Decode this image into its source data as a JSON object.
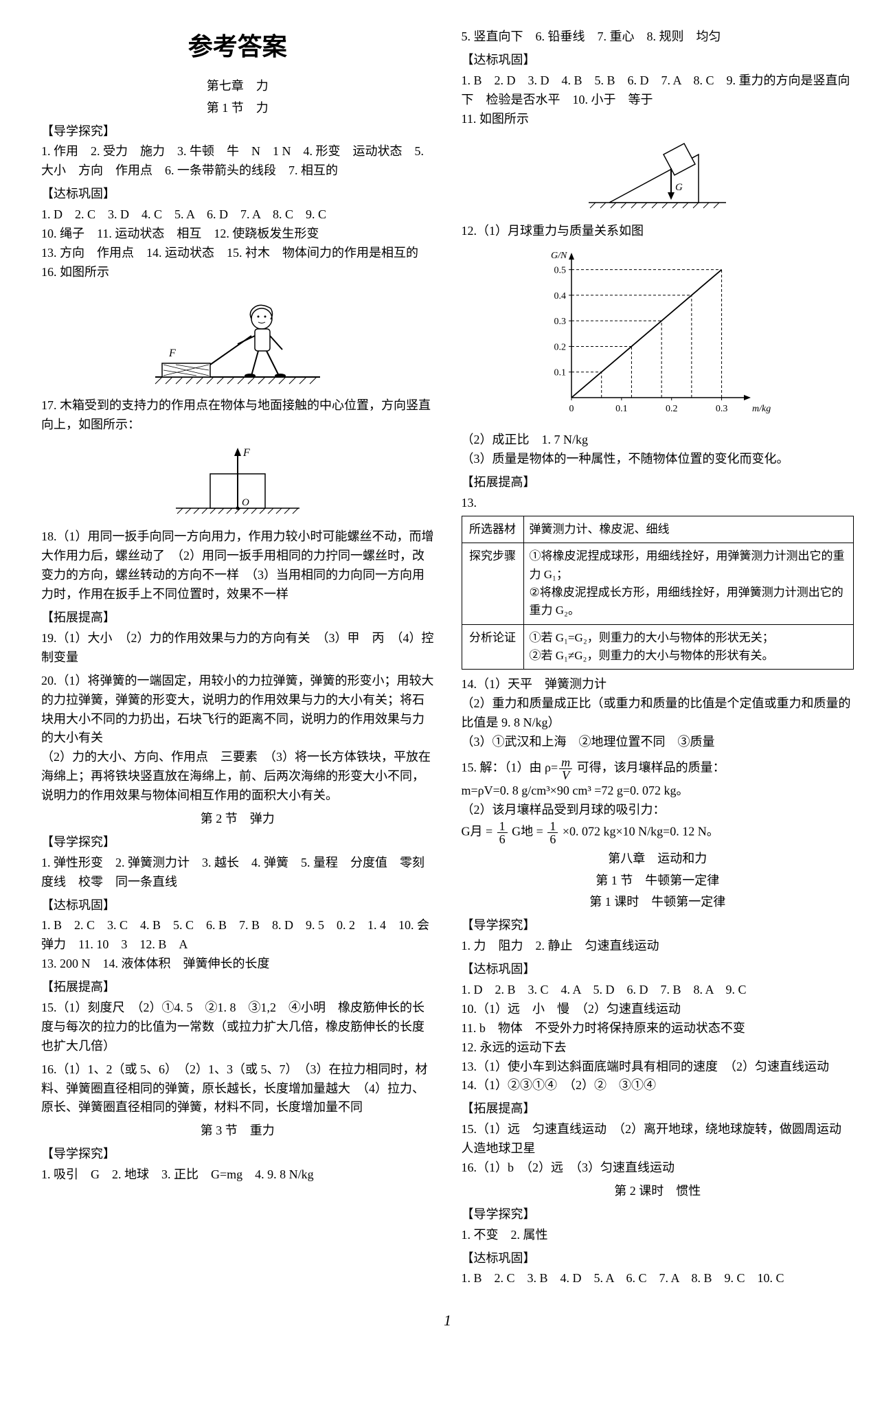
{
  "title": "参考答案",
  "left": {
    "chapter": "第七章　力",
    "s1": {
      "title": "第 1 节　力",
      "dxtq_h": "【导学探究】",
      "dxtq": "1. 作用　2. 受力　施力　3. 牛顿　牛　N　1 N　4. 形变　运动状态　5. 大小　方向　作用点　6. 一条带箭头的线段　7. 相互的",
      "dbgg_h": "【达标巩固】",
      "dbgg_a": "1. D　2. C　3. D　4. C　5. A　6. D　7. A　8. C　9. C",
      "dbgg_b": "10. 绳子　11. 运动状态　相互　12. 使跷板发生形变",
      "dbgg_c": "13. 方向　作用点　14. 运动状态　15. 衬木　物体间力的作用是相互的",
      "dbgg_d": "16. 如图所示",
      "q17": "17. 木箱受到的支持力的作用点在物体与地面接触的中心位置，方向竖直向上，如图所示：",
      "q18": "18.（1）用同一扳手向同一方向用力，作用力较小时可能螺丝不动，而增大作用力后，螺丝动了　（2）用同一扳手用相同的力拧同一螺丝时，改变力的方向，螺丝转动的方向不一样　（3）当用相同的力向同一方向用力时，作用在扳手上不同位置时，效果不一样",
      "tztg_h": "【拓展提高】",
      "q19": "19.（1）大小　（2）力的作用效果与力的方向有关　（3）甲　丙　（4）控制变量",
      "q20a": "20.（1）将弹簧的一端固定，用较小的力拉弹簧，弹簧的形变小；用较大的力拉弹簧，弹簧的形变大，说明力的作用效果与力的大小有关；将石块用大小不同的力扔出，石块飞行的距离不同，说明力的作用效果与力的大小有关",
      "q20b": "（2）力的大小、方向、作用点　三要素　（3）将一长方体铁块，平放在海绵上；再将铁块竖直放在海绵上，前、后两次海绵的形变大小不同，说明力的作用效果与物体间相互作用的面积大小有关。"
    },
    "s2": {
      "title": "第 2 节　弹力",
      "dxtq_h": "【导学探究】",
      "dxtq": "1. 弹性形变　2. 弹簧测力计　3. 越长　4. 弹簧　5. 量程　分度值　零刻度线　校零　同一条直线",
      "dbgg_h": "【达标巩固】",
      "dbgg_a": "1. B　2. C　3. C　4. B　5. C　6. B　7. B　8. D　9. 5　0. 2　1. 4　10. 会　弹力　11. 10　3　12. B　A",
      "dbgg_b": "13. 200 N　14. 液体体积　弹簧伸长的长度",
      "tztg_h": "【拓展提高】",
      "q15": "15.（1）刻度尺　（2）①4. 5　②1. 8　③1,2　④小明　橡皮筋伸长的长度与每次的拉力的比值为一常数（或拉力扩大几倍，橡皮筋伸长的长度也扩大几倍）",
      "q16": "16.（1）1、2（或 5、6）　（2）1、3（或 5、7）　（3）在拉力相同时，材料、弹簧圈直径相同的弹簧，原长越长，长度增加量越大　（4）拉力、原长、弹簧圈直径相同的弹簧，材料不同，长度增加量不同"
    },
    "s3": {
      "title": "第 3 节　重力",
      "dxtq_h": "【导学探究】",
      "dxtq": "1. 吸引　G　2. 地球　3. 正比　G=mg　4. 9. 8 N/kg"
    }
  },
  "right": {
    "top": "5. 竖直向下　6. 铅垂线　7. 重心　8. 规则　均匀",
    "dbgg_h": "【达标巩固】",
    "dbgg_a": "1. B　2. D　3. D　4. B　5. B　6. D　7. A　8. C　9. 重力的方向是竖直向下　检验是否水平　10. 小于　等于",
    "q11": "11. 如图所示",
    "q12_h": "12.（1）月球重力与质量关系如图",
    "chart": {
      "type": "line",
      "xlabel": "m/kg",
      "ylabel": "G/N",
      "xlim": [
        0,
        0.35
      ],
      "ylim": [
        0,
        0.55
      ],
      "xticks": [
        0,
        0.1,
        0.2,
        0.3
      ],
      "yticks": [
        0,
        0.1,
        0.2,
        0.3,
        0.4,
        0.5
      ],
      "points_x": [
        0,
        0.06,
        0.12,
        0.18,
        0.24,
        0.3
      ],
      "points_y": [
        0,
        0.1,
        0.2,
        0.3,
        0.4,
        0.5
      ],
      "line_color": "#000000",
      "axis_color": "#000000",
      "dash_color": "#000000",
      "background": "#ffffff",
      "font_size": 14
    },
    "q12b": "（2）成正比　1. 7 N/kg",
    "q12c": "（3）质量是物体的一种属性，不随物体位置的变化而变化。",
    "tztg_h": "【拓展提高】",
    "q13_label": "13.",
    "q13": {
      "r1c1": "所选器材",
      "r1c2": "弹簧测力计、橡皮泥、细线",
      "r2c1": "探究步骤",
      "r2c2": "①将橡皮泥捏成球形，用细线拴好，用弹簧测力计测出它的重力 G₁；\n②将橡皮泥捏成长方形，用细线拴好，用弹簧测力计测出它的重力 G₂。",
      "r3c1": "分析论证",
      "r3c2": "①若 G₁=G₂，则重力的大小与物体的形状无关；\n②若 G₁≠G₂，则重力的大小与物体的形状有关。"
    },
    "q14a": "14.（1）天平　弹簧测力计",
    "q14b": "（2）重力和质量成正比（或重力和质量的比值是个定值或重力和质量的比值是 9. 8 N/kg）",
    "q14c": "（3）①武汉和上海　②地理位置不同　③质量",
    "q15a_pre": "15. 解：（1）由 ρ=",
    "q15a_post": " 可得，该月壤样品的质量：",
    "q15b": "m=ρV=0. 8 g/cm³×90 cm³ =72 g=0. 072 kg。",
    "q15c": "（2）该月壤样品受到月球的吸引力：",
    "q15d_pre": "G月 = ",
    "q15d_mid": " G地 = ",
    "q15d_post": " ×0. 072 kg×10 N/kg=0. 12 N。",
    "ch8": "第八章　运动和力",
    "ch8s1": "第 1 节　牛顿第一定律",
    "ch8s1t1": "第 1 课时　牛顿第一定律",
    "dxtq2_h": "【导学探究】",
    "dxtq2": "1. 力　阻力　2. 静止　匀速直线运动",
    "dbgg2_h": "【达标巩固】",
    "dbgg2_a": "1. D　2. B　3. C　4. A　5. D　6. D　7. B　8. A　9. C",
    "dbgg2_b": "10.（1）远　小　慢　（2）匀速直线运动",
    "dbgg2_c": "11. b　物体　不受外力时将保持原来的运动状态不变",
    "dbgg2_d": "12. 永远的运动下去",
    "dbgg2_e": "13.（1）使小车到达斜面底端时具有相同的速度　（2）匀速直线运动",
    "dbgg2_f": "14.（1）②③①④　（2）②　③①④",
    "tztg2_h": "【拓展提高】",
    "tztg2_a": "15.（1）远　匀速直线运动　（2）离开地球，绕地球旋转，做圆周运动　人造地球卫星",
    "tztg2_b": "16.（1）b　（2）远　（3）匀速直线运动",
    "ch8s1t2": "第 2 课时　惯性",
    "dxtq3_h": "【导学探究】",
    "dxtq3": "1. 不变　2. 属性",
    "dbgg3_h": "【达标巩固】",
    "dbgg3": "1. B　2. C　3. B　4. D　5. A　6. C　7. A　8. B　9. C　10. C"
  },
  "page_num": "1"
}
